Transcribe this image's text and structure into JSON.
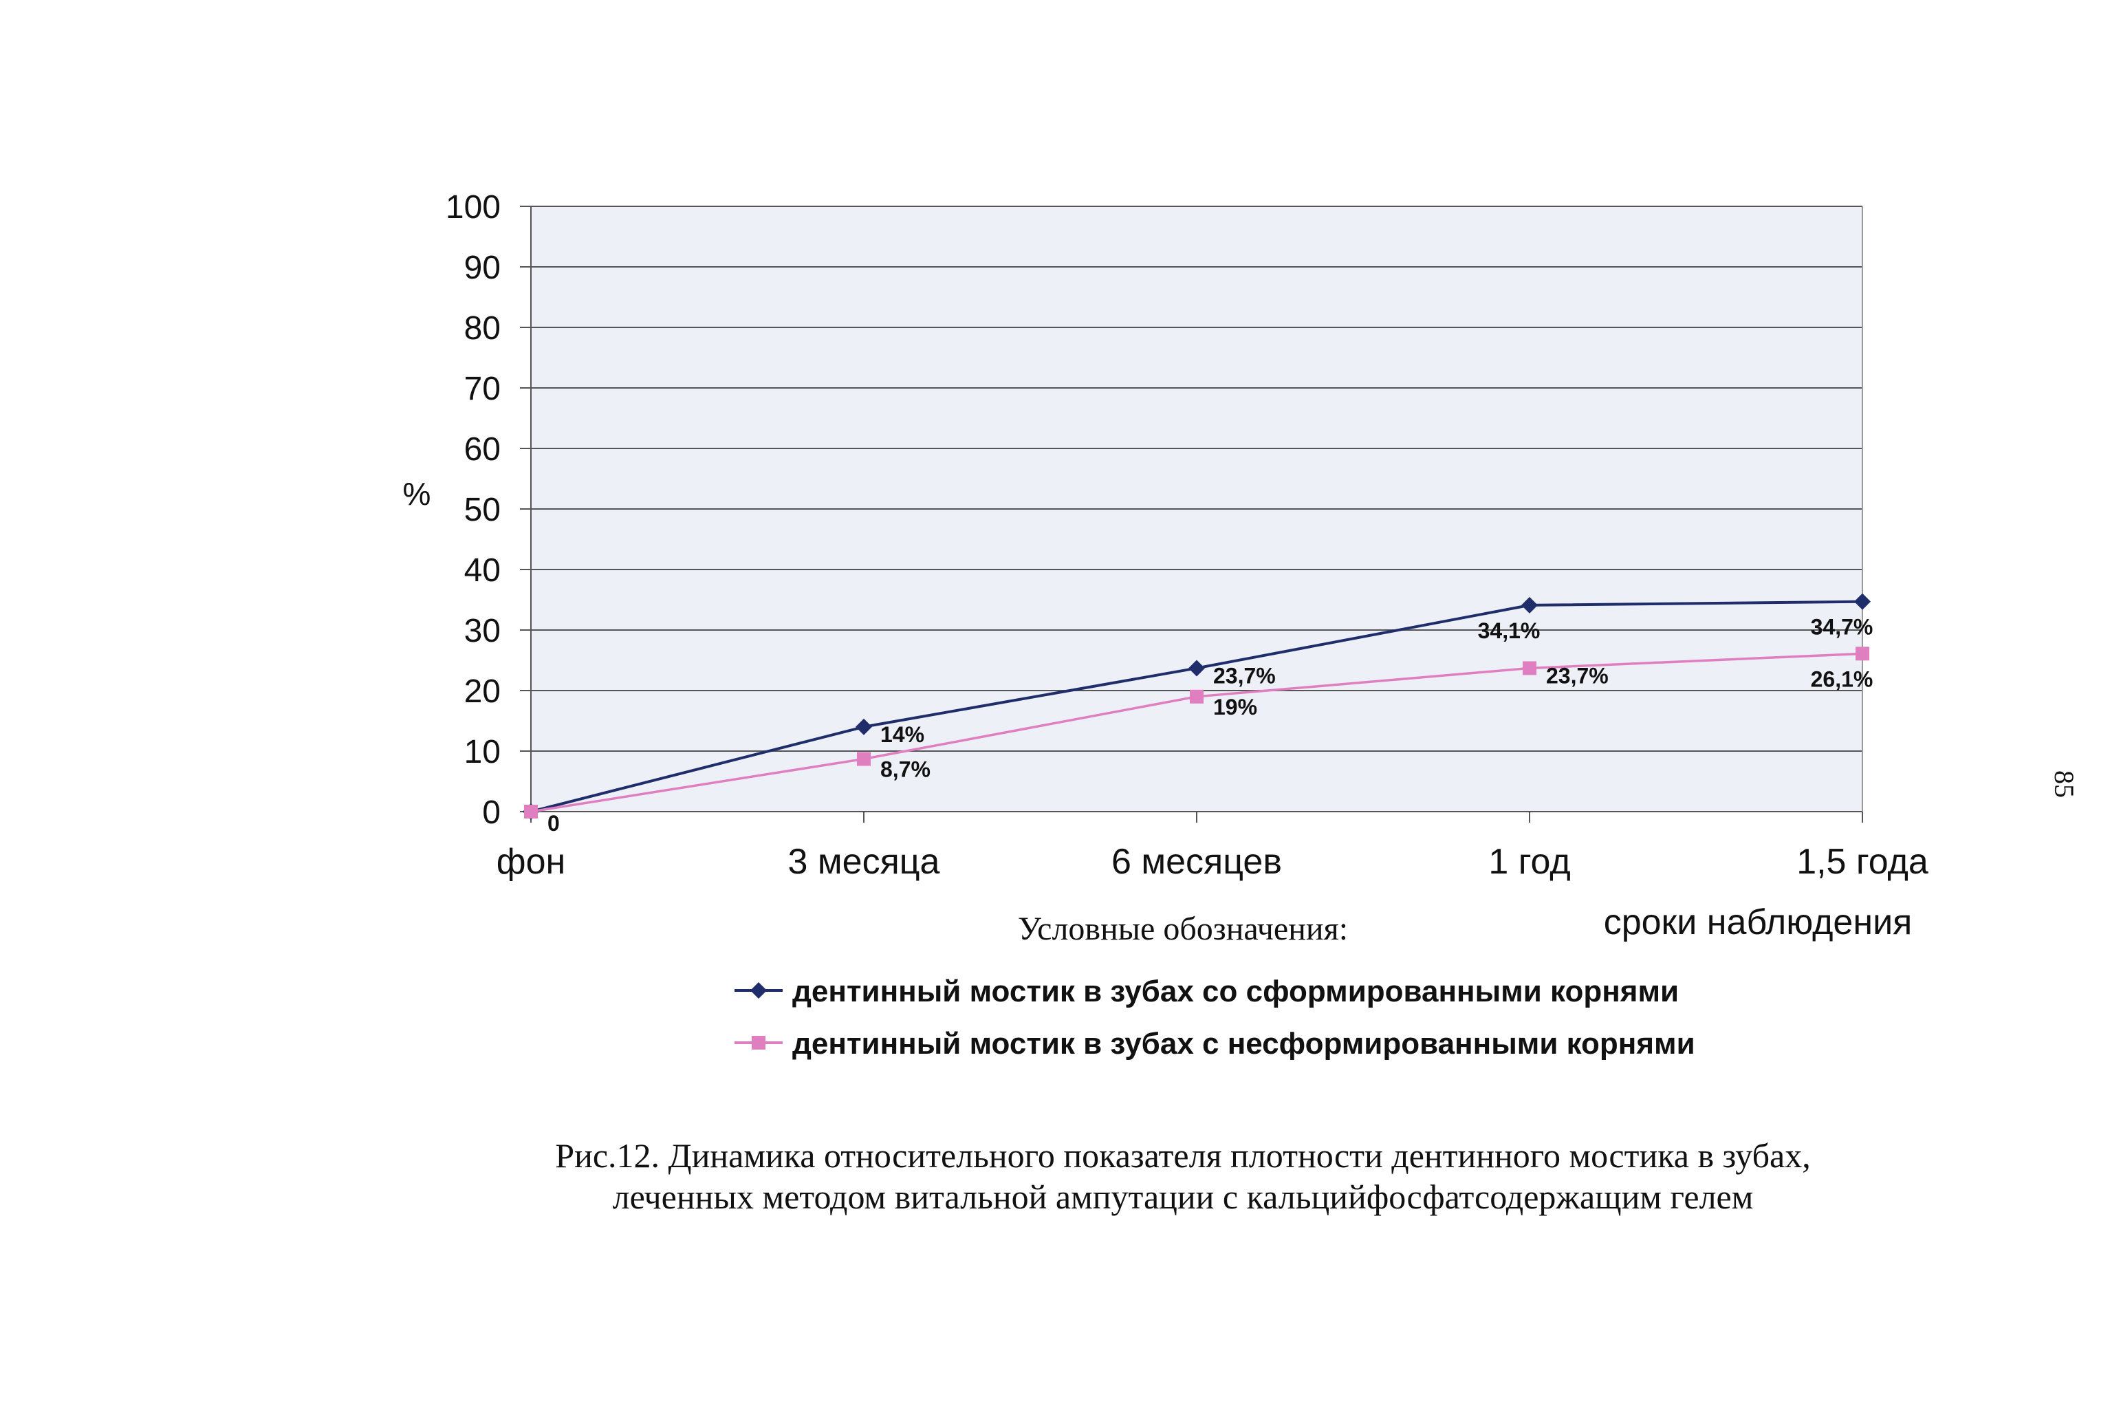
{
  "page_number": "85",
  "chart_data": {
    "type": "line",
    "categories": [
      "фон",
      "3 месяца",
      "6 месяцев",
      "1 год",
      "1,5 года"
    ],
    "ylim": [
      0,
      100
    ],
    "y_ticks": [
      "0",
      "10",
      "20",
      "30",
      "40",
      "50",
      "60",
      "70",
      "80",
      "90",
      "100"
    ],
    "ylabel": "%",
    "xlabel": "сроки наблюдения",
    "grid": true,
    "series": [
      {
        "name": "дентинный мостик в зубах со сформированными корнями",
        "values": [
          0,
          14,
          23.7,
          34.1,
          34.7
        ],
        "labels": [
          "",
          "14%",
          "23,7%",
          "34,1%",
          "34,7%"
        ],
        "color": "#1f2d6b",
        "marker": "diamond"
      },
      {
        "name": "дентинный мостик в зубах с несформированными корнями",
        "values": [
          0,
          8.7,
          19,
          23.7,
          26.1
        ],
        "labels": [
          "0",
          "8,7%",
          "19%",
          "23,7%",
          "26,1%"
        ],
        "color": "#e07fc0",
        "marker": "square"
      }
    ],
    "legend_title": "Условные обозначения:",
    "legend_position": "bottom"
  },
  "caption": {
    "line1": "Рис.12.  Динамика относительного показателя плотности дентинного мостика в зубах,",
    "line2": "леченных методом витальной ампутации с кальцийфосфатсодержащим гелем"
  }
}
